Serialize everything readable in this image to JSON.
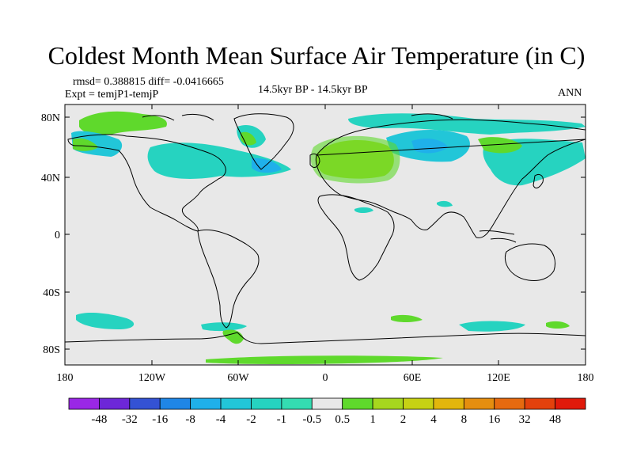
{
  "title": "Coldest Month Mean Surface Air Temperature (in C)",
  "stats": {
    "rmsd_line": "rmsd= 0.388815 diff= -0.0416665",
    "expt_line": "Expt = temjP1-temjP",
    "period": "14.5kyr BP - 14.5kyr BP",
    "season": "ANN"
  },
  "axes": {
    "lat_ticks": [
      "80N",
      "40N",
      "0",
      "40S",
      "80S"
    ],
    "lon_ticks": [
      "180",
      "120W",
      "60W",
      "0",
      "60E",
      "120E",
      "180"
    ]
  },
  "colorbar": {
    "labels": [
      "-48",
      "-32",
      "-16",
      "-8",
      "-4",
      "-2",
      "-1",
      "-0.5",
      "0.5",
      "1",
      "2",
      "4",
      "8",
      "16",
      "32",
      "48"
    ],
    "colors": [
      "#9a27e6",
      "#6d27d8",
      "#3452d4",
      "#1f86e6",
      "#1fb0ea",
      "#22c6d8",
      "#26d3c0",
      "#34dcb1",
      "#e8e8e8",
      "#5fd92c",
      "#a6d71e",
      "#c6d114",
      "#e2b60c",
      "#e58e0f",
      "#e66a0f",
      "#e3410c",
      "#e01a0a"
    ]
  },
  "palette": {
    "background": "#ffffff",
    "map_fill": "#e8e8e8",
    "coast": "#000000"
  }
}
